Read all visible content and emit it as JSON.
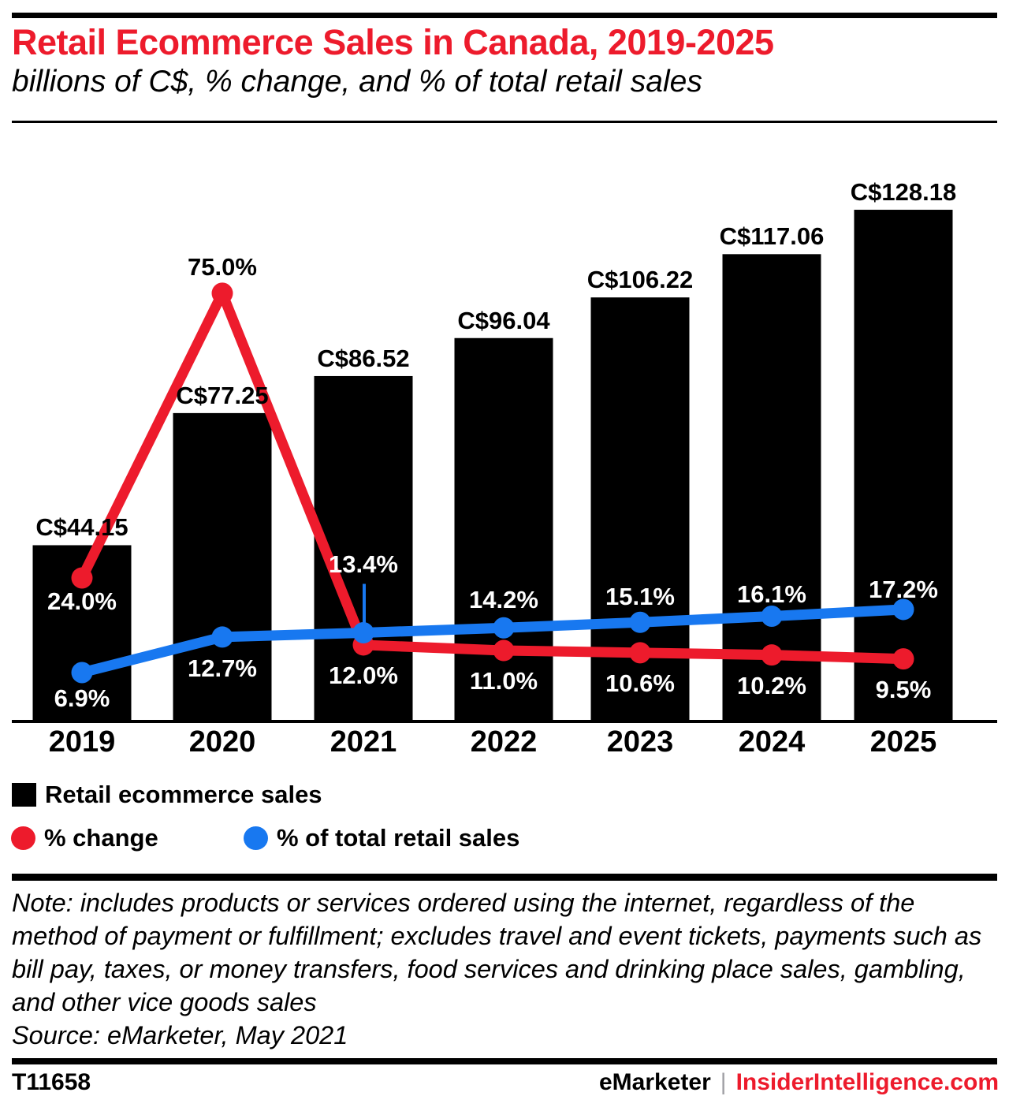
{
  "header": {
    "title": "Retail Ecommerce Sales in Canada, 2019-2025",
    "subtitle": "billions of C$, % change, and % of total retail sales"
  },
  "chart_data": {
    "type": "bar",
    "combo": "bar + 2 line series",
    "title": "Retail Ecommerce Sales in Canada, 2019-2025",
    "subtitle": "billions of C$, % change, and % of total retail sales",
    "categories": [
      "2019",
      "2020",
      "2021",
      "2022",
      "2023",
      "2024",
      "2025"
    ],
    "xlabel": "",
    "ylabel": "",
    "grid": false,
    "legend_position": "bottom-left",
    "bar_axis_range": [
      0,
      140
    ],
    "pct_axis_range": [
      0,
      80
    ],
    "series": [
      {
        "name": "Retail ecommerce sales",
        "type": "bar",
        "unit": "billions of C$",
        "color": "#000000",
        "values": [
          44.15,
          77.25,
          86.52,
          96.04,
          106.22,
          117.06,
          128.18
        ],
        "labels": [
          "C$44.15",
          "C$77.25",
          "C$86.52",
          "C$96.04",
          "C$106.22",
          "C$117.06",
          "C$128.18"
        ]
      },
      {
        "name": "% change",
        "type": "line",
        "unit": "%",
        "color": "#ed1b2c",
        "values": [
          24.0,
          75.0,
          12.0,
          11.0,
          10.6,
          10.2,
          9.5
        ],
        "labels": [
          "24.0%",
          "75.0%",
          "12.0%",
          "11.0%",
          "10.6%",
          "10.2%",
          "9.5%"
        ]
      },
      {
        "name": "% of total retail sales",
        "type": "line",
        "unit": "%",
        "color": "#1878f0",
        "values": [
          6.9,
          12.7,
          13.4,
          14.2,
          15.1,
          16.1,
          17.2
        ],
        "labels": [
          "6.9%",
          "12.7%",
          "13.4%",
          "14.2%",
          "15.1%",
          "16.1%",
          "17.2%"
        ]
      }
    ]
  },
  "legend": {
    "items": [
      {
        "label": "Retail ecommerce sales",
        "swatch": "square",
        "color": "#000000"
      },
      {
        "label": "% change",
        "swatch": "circle",
        "color": "#ed1b2c"
      },
      {
        "label": "% of total retail sales",
        "swatch": "circle",
        "color": "#1878f0"
      }
    ]
  },
  "note": "Note: includes products or services ordered using the internet, regardless of the method of payment or fulfillment; excludes travel and event tickets, payments such as bill pay, taxes, or money transfers, food services and drinking place sales, gambling, and other vice goods sales",
  "source": "Source: eMarketer, May 2021",
  "footer": {
    "chart_id": "T11658",
    "brand": "eMarketer",
    "separator": "|",
    "site": "InsiderIntelligence.com"
  },
  "colors": {
    "accent_red": "#ed1b2c",
    "accent_blue": "#1878f0",
    "bar_black": "#000000",
    "separator_gray": "#a0a0a5"
  }
}
